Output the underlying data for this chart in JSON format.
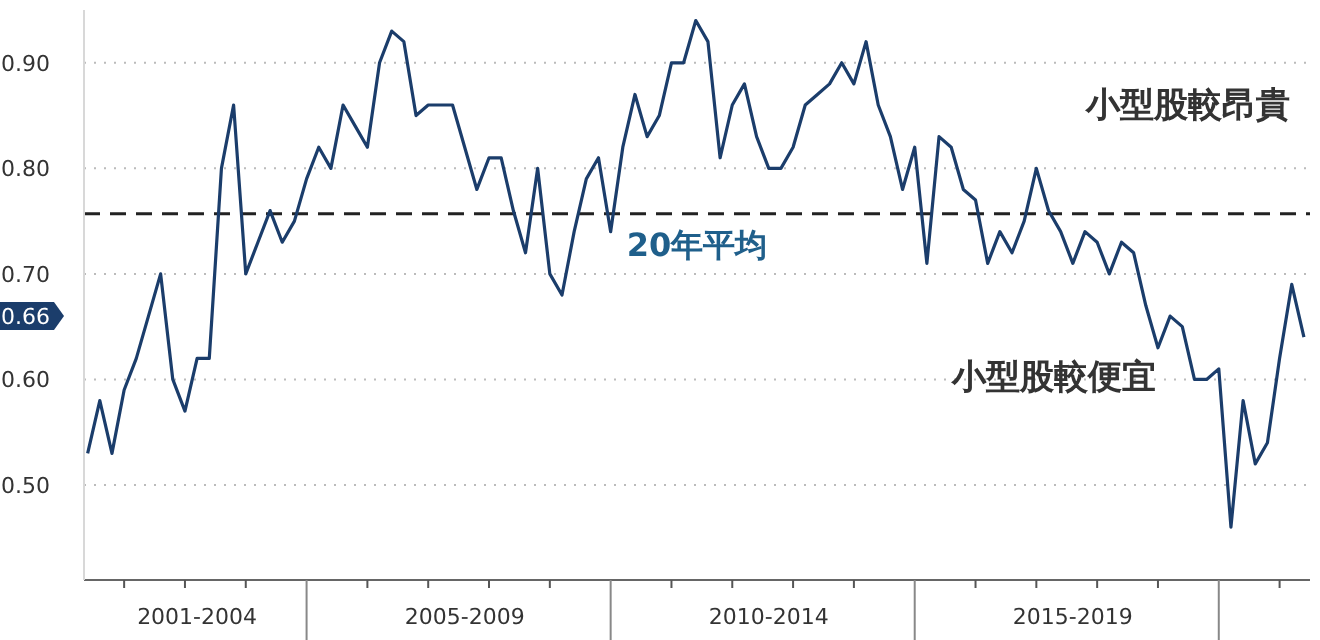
{
  "chart_data": {
    "type": "line",
    "categories": [
      null,
      null,
      null,
      null,
      null,
      null,
      null,
      null,
      null,
      "2001-2004",
      null,
      null,
      null,
      null,
      null,
      null,
      null,
      null,
      null,
      null,
      null,
      null,
      null,
      null,
      null,
      null,
      null,
      null,
      null,
      null,
      null,
      "2005-2009",
      null,
      null,
      null,
      null,
      null,
      null,
      null,
      null,
      null,
      null,
      null,
      null,
      null,
      null,
      null,
      null,
      null,
      null,
      null,
      null,
      null,
      null,
      null,
      null,
      "2010-2014",
      null,
      null,
      null,
      null,
      null,
      null,
      null,
      null,
      null,
      null,
      null,
      null,
      null,
      null,
      null,
      null,
      null,
      null,
      null,
      null,
      null,
      null,
      null,
      null,
      "2015-2019",
      null,
      null,
      null,
      null,
      null,
      null,
      null,
      null,
      null,
      null,
      null,
      null,
      null,
      null,
      null,
      null,
      null,
      null,
      null
    ],
    "series": [
      {
        "color": "#1b3d6b",
        "values": [
          0.53,
          0.58,
          0.53,
          0.59,
          0.62,
          0.66,
          0.7,
          0.6,
          0.57,
          0.62,
          0.62,
          0.8,
          0.86,
          0.7,
          0.73,
          0.76,
          0.73,
          0.75,
          0.79,
          0.82,
          0.8,
          0.86,
          0.84,
          0.82,
          0.9,
          0.93,
          0.92,
          0.85,
          0.86,
          0.86,
          0.86,
          0.82,
          0.78,
          0.81,
          0.81,
          0.76,
          0.72,
          0.8,
          0.7,
          0.68,
          0.74,
          0.79,
          0.81,
          0.74,
          0.82,
          0.87,
          0.83,
          0.85,
          0.9,
          0.9,
          0.94,
          0.92,
          0.81,
          0.86,
          0.88,
          0.83,
          0.8,
          0.8,
          0.82,
          0.86,
          0.87,
          0.88,
          0.9,
          0.88,
          0.92,
          0.86,
          0.83,
          0.78,
          0.82,
          0.71,
          0.83,
          0.82,
          0.78,
          0.77,
          0.71,
          0.74,
          0.72,
          0.75,
          0.8,
          0.76,
          0.74,
          0.71,
          0.74,
          0.73,
          0.7,
          0.73,
          0.72,
          0.67,
          0.63,
          0.66,
          0.65,
          0.6,
          0.6,
          0.61,
          0.46,
          0.58,
          0.52,
          0.54,
          0.62,
          0.69,
          0.64
        ]
      }
    ],
    "ylim": [
      0.41,
      0.95
    ],
    "yticks": [
      {
        "value": 0.5,
        "label": "0.50"
      },
      {
        "value": 0.6,
        "label": "0.60"
      },
      {
        "value": 0.66,
        "label": "0.66"
      },
      {
        "value": 0.7,
        "label": "0.70"
      },
      {
        "value": 0.8,
        "label": "0.80"
      },
      {
        "value": 0.9,
        "label": "0.90"
      }
    ],
    "grid": "y",
    "ref_lines": [
      {
        "axis": "y",
        "value": 0.757,
        "label": "20年平均",
        "color": "#222222",
        "line_style": "dashed"
      }
    ],
    "annotations": [
      "小型股較昂貴",
      "小型股較便宜"
    ],
    "legend": false
  }
}
